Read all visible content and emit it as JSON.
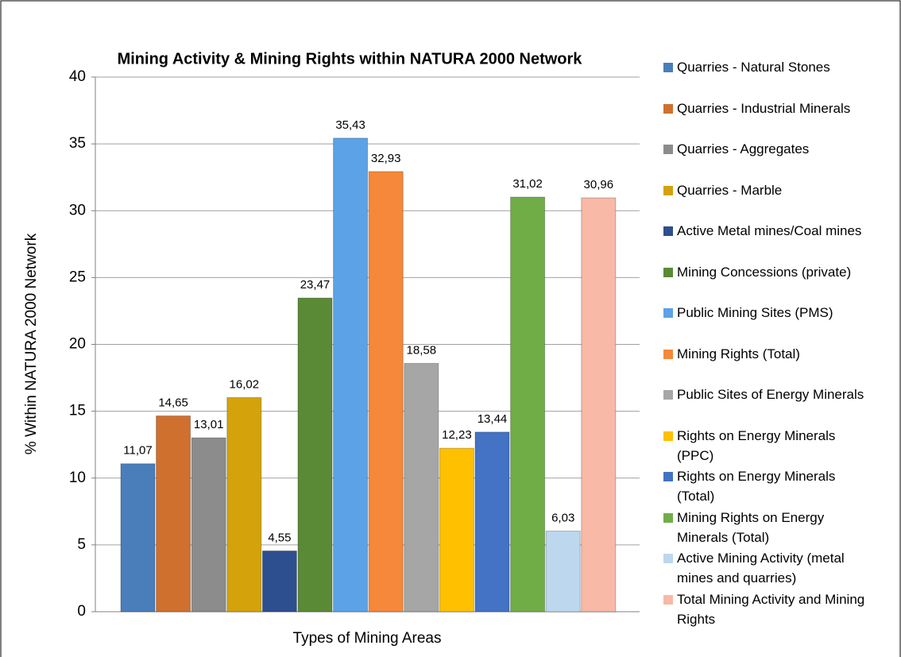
{
  "chart_data": {
    "type": "bar",
    "title": "Mining Activity & Mining Rights within NATURA 2000 Network",
    "y_label": "% Within NATURA 2000 Network",
    "x_label": "Types of Mining Areas",
    "ylim": [
      0,
      40
    ],
    "yticks": [
      0,
      5,
      10,
      15,
      20,
      25,
      30,
      35,
      40
    ],
    "grid": true,
    "legend": "right",
    "series": [
      {
        "name": "Quarries - Natural Stones",
        "color": "#4a7ebb",
        "values": [
          11.07
        ],
        "value_labels": [
          "11,07"
        ]
      },
      {
        "name": "Quarries - Industrial Minerals",
        "color": "#d0702e",
        "values": [
          14.65
        ],
        "value_labels": [
          "14,65"
        ]
      },
      {
        "name": "Quarries - Aggregates",
        "color": "#8c8c8c",
        "values": [
          13.01
        ],
        "value_labels": [
          "13,01"
        ]
      },
      {
        "name": "Quarries - Marble",
        "color": "#d4a20a",
        "values": [
          16.02
        ],
        "value_labels": [
          "16,02"
        ]
      },
      {
        "name": "Active Metal mines/Coal mines",
        "color": "#2e4f8f",
        "values": [
          4.55
        ],
        "value_labels": [
          "4,55"
        ]
      },
      {
        "name": "Mining Concessions (private)",
        "color": "#5a8a36",
        "values": [
          23.47
        ],
        "value_labels": [
          "23,47"
        ]
      },
      {
        "name": "Public Mining Sites (PMS)",
        "color": "#5ba3e6",
        "values": [
          35.43
        ],
        "value_labels": [
          "35,43"
        ]
      },
      {
        "name": "Mining Rights (Total)",
        "color": "#f5883a",
        "values": [
          32.93
        ],
        "value_labels": [
          "32,93"
        ]
      },
      {
        "name": "Public Sites of Energy Minerals",
        "color": "#a6a6a6",
        "values": [
          18.58
        ],
        "value_labels": [
          "18,58"
        ]
      },
      {
        "name": "Rights on Energy Minerals (PPC)",
        "color": "#ffc000",
        "values": [
          12.23
        ],
        "value_labels": [
          "12,23"
        ]
      },
      {
        "name": "Rights on Energy Minerals (Total)",
        "color": "#4472c4",
        "values": [
          13.44
        ],
        "value_labels": [
          "13,44"
        ]
      },
      {
        "name": "Mining Rights on Energy Minerals (Total)",
        "color": "#70ad47",
        "values": [
          31.02
        ],
        "value_labels": [
          "31,02"
        ]
      },
      {
        "name": "Active Mining Activity (metal mines and quarries)",
        "color": "#bdd7ee",
        "values": [
          6.03
        ],
        "value_labels": [
          "6,03"
        ]
      },
      {
        "name": "Total Mining Activity and Mining Rights",
        "color": "#f8b9a6",
        "values": [
          30.96
        ],
        "value_labels": [
          "30,96"
        ]
      }
    ]
  }
}
